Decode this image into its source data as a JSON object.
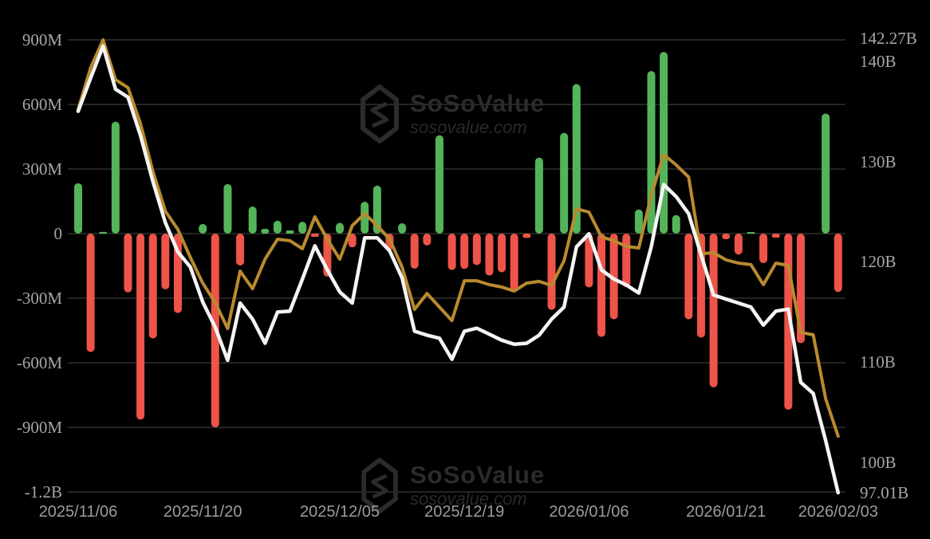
{
  "watermark": {
    "brand": "SoSoValue",
    "domain": "sosovalue.com"
  },
  "colors": {
    "background": "#000000",
    "bar_positive": "#54b45a",
    "bar_negative": "#ee5449",
    "gold_line": "#b98a2f",
    "white_line": "#f4f4f4",
    "gridline": "#313131",
    "axis_label": "#a6a6a6",
    "date_label": "#9c9c9c",
    "watermark": "#2b2b2b"
  },
  "chart_data": {
    "type": "bar",
    "subtype": "combo-bar-line",
    "title": "",
    "xlabel": "",
    "ylabel": "",
    "grid": true,
    "legend_position": "none",
    "x_tick_labels": [
      {
        "index": 0,
        "label": "2025/11/06"
      },
      {
        "index": 10,
        "label": "2025/11/20"
      },
      {
        "index": 21,
        "label": "2025/12/05"
      },
      {
        "index": 31,
        "label": "2025/12/19"
      },
      {
        "index": 41,
        "label": "2026/01/06"
      },
      {
        "index": 52,
        "label": "2026/01/21"
      },
      {
        "index": 61,
        "label": "2026/02/03"
      }
    ],
    "left_axis": {
      "unit": "USD millions (M) / billions (B)",
      "range": [
        -1200,
        900
      ],
      "ticks": [
        {
          "label": "900M",
          "value": 900
        },
        {
          "label": "600M",
          "value": 600
        },
        {
          "label": "300M",
          "value": 300
        },
        {
          "label": "0",
          "value": 0
        },
        {
          "label": "-300M",
          "value": -300
        },
        {
          "label": "-600M",
          "value": -600
        },
        {
          "label": "-900M",
          "value": -900
        },
        {
          "label": "-1.2B",
          "value": -1200
        }
      ]
    },
    "right_axis": {
      "unit": "USD billions (B)",
      "range": [
        97.01,
        142.27
      ],
      "ticks": [
        {
          "label": "142.27B",
          "value": 142.27
        },
        {
          "label": "140B",
          "value": 140
        },
        {
          "label": "130B",
          "value": 130
        },
        {
          "label": "120B",
          "value": 120
        },
        {
          "label": "110B",
          "value": 110
        },
        {
          "label": "100B",
          "value": 100
        },
        {
          "label": "97.01B",
          "value": 97.01
        }
      ]
    },
    "series": [
      {
        "name": "daily-flow-bars",
        "type": "bar",
        "axis": "left",
        "unit": "M",
        "values": [
          234,
          -550,
          8,
          520,
          -273,
          -864,
          -487,
          -259,
          -369,
          0,
          45,
          -900,
          230,
          -148,
          126,
          22,
          60,
          15,
          55,
          -15,
          -200,
          50,
          -64,
          148,
          223,
          -75,
          48,
          -163,
          -55,
          457,
          -169,
          -164,
          -146,
          -195,
          -180,
          -272,
          -20,
          353,
          -354,
          468,
          695,
          -250,
          -480,
          -398,
          -249,
          112,
          755,
          844,
          86,
          -398,
          -483,
          -714,
          -26,
          -97,
          5,
          -137,
          -19,
          -818,
          -509,
          0,
          558,
          -271
        ]
      },
      {
        "name": "gold-line",
        "type": "line",
        "axis": "left",
        "unit": "M",
        "values": [
          578,
          770,
          900,
          715,
          678,
          511,
          289,
          104,
          20,
          -110,
          -230,
          -320,
          -441,
          -174,
          -256,
          -119,
          -26,
          -33,
          -70,
          78,
          -26,
          -119,
          37,
          93,
          37,
          -26,
          -156,
          -352,
          -278,
          -341,
          -404,
          -219,
          -219,
          -237,
          -248,
          -267,
          -230,
          -222,
          -241,
          -126,
          115,
          100,
          -15,
          -33,
          -59,
          -67,
          178,
          367,
          319,
          263,
          -93,
          -89,
          -122,
          -137,
          -144,
          -237,
          -137,
          -148,
          -459,
          -470,
          -767,
          -941
        ]
      },
      {
        "name": "white-line",
        "type": "line",
        "axis": "right",
        "unit": "B",
        "values": [
          135.0,
          138.3,
          141.5,
          137.2,
          136.4,
          132.6,
          128.0,
          123.9,
          121.0,
          119.5,
          116.0,
          113.5,
          110.2,
          115.9,
          114.3,
          111.9,
          115.0,
          115.1,
          118.3,
          121.6,
          119.2,
          117.0,
          115.9,
          122.4,
          122.4,
          121.1,
          118.4,
          113.1,
          112.7,
          112.4,
          110.3,
          113.1,
          113.4,
          112.8,
          112.2,
          111.8,
          111.9,
          112.7,
          114.3,
          115.5,
          121.5,
          122.8,
          119.2,
          118.3,
          117.7,
          116.9,
          121.5,
          127.7,
          126.5,
          124.8,
          120.7,
          116.7,
          116.3,
          115.9,
          115.5,
          113.7,
          115.1,
          115.3,
          108.0,
          106.9,
          102.2,
          97.01
        ]
      }
    ]
  }
}
